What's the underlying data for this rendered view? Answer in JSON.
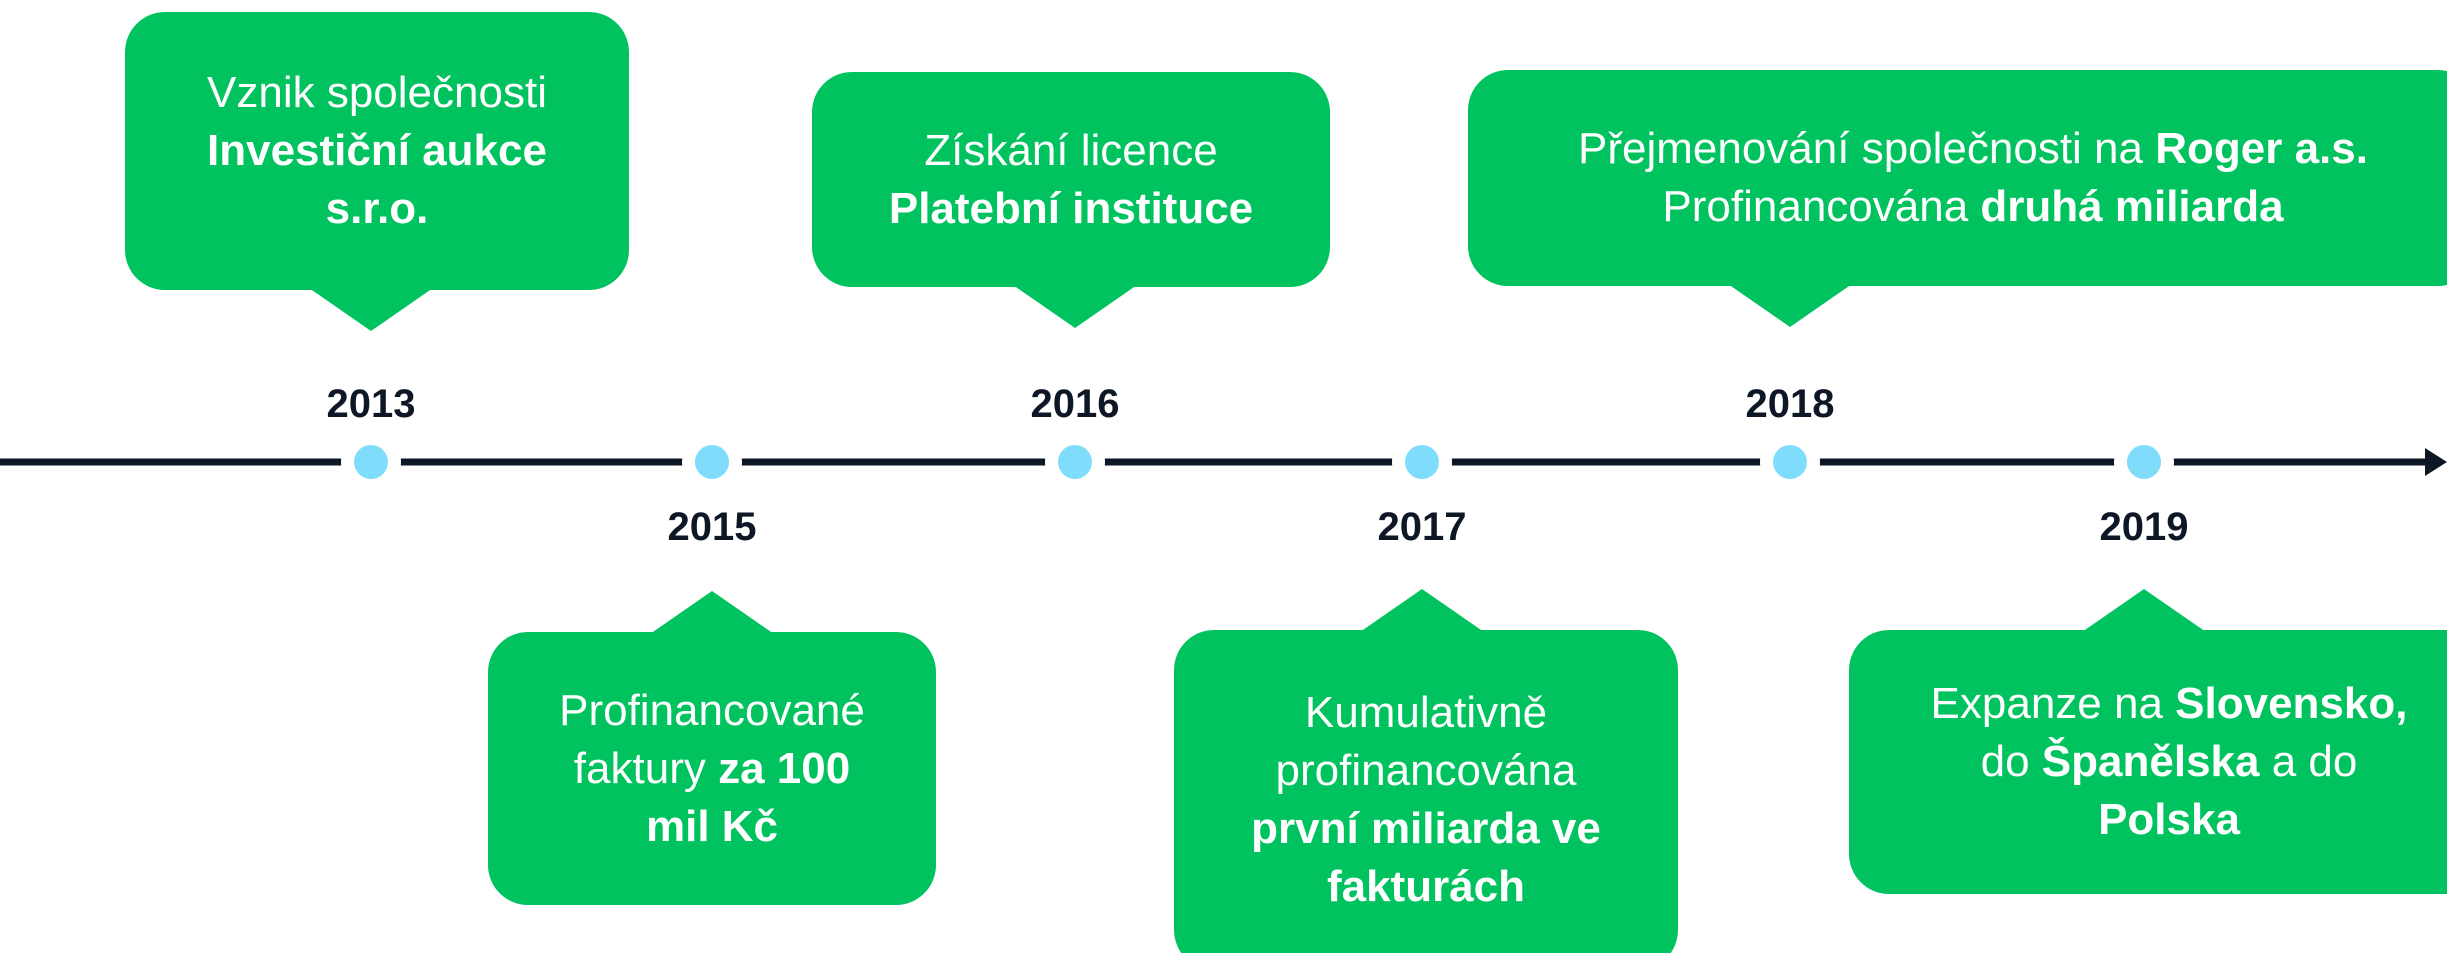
{
  "events": [
    {
      "year": "2013",
      "lines": [
        [
          {
            "text": "Vznik společnosti"
          }
        ],
        [
          {
            "text": "Investiční aukce",
            "bold": true
          }
        ],
        [
          {
            "text": "s.r.o.",
            "bold": true
          }
        ]
      ]
    },
    {
      "year": "2015",
      "lines": [
        [
          {
            "text": "Profinancované"
          }
        ],
        [
          {
            "text": "faktury "
          },
          {
            "text": "za 100",
            "bold": true
          }
        ],
        [
          {
            "text": "mil Kč",
            "bold": true
          }
        ]
      ]
    },
    {
      "year": "2016",
      "lines": [
        [
          {
            "text": "Získání licence"
          }
        ],
        [
          {
            "text": "Platební instituce",
            "bold": true
          }
        ]
      ]
    },
    {
      "year": "2017",
      "lines": [
        [
          {
            "text": "Kumulativně"
          }
        ],
        [
          {
            "text": "profinancována"
          }
        ],
        [
          {
            "text": "první miliarda ve",
            "bold": true
          }
        ],
        [
          {
            "text": "fakturách",
            "bold": true
          }
        ]
      ]
    },
    {
      "year": "2018",
      "lines": [
        [
          {
            "text": "Přejmenování společnosti na "
          },
          {
            "text": "Roger a.s.",
            "bold": true
          }
        ],
        [
          {
            "text": "Profinancována "
          },
          {
            "text": "druhá miliarda",
            "bold": true
          }
        ]
      ]
    },
    {
      "year": "2019",
      "lines": [
        [
          {
            "text": "Expanze na "
          },
          {
            "text": "Slovensko,",
            "bold": true
          }
        ],
        [
          {
            "text": "do "
          },
          {
            "text": "Španělska",
            "bold": true
          },
          {
            "text": " a do"
          }
        ],
        [
          {
            "text": "Polska",
            "bold": true
          }
        ]
      ]
    }
  ]
}
